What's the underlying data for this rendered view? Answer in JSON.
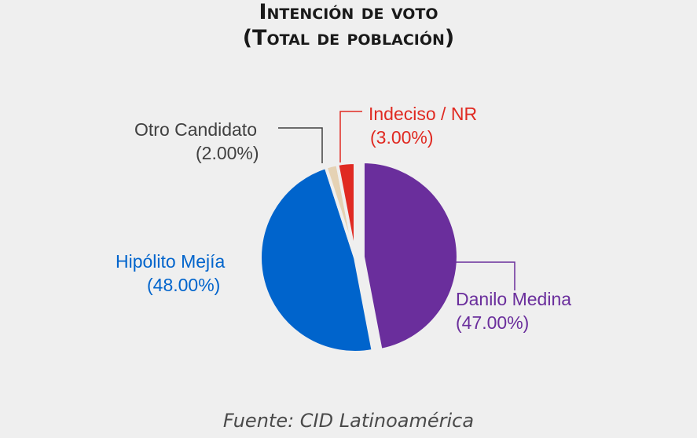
{
  "chart_data": {
    "type": "pie",
    "title_line1": "Intención de voto",
    "title_line2": "(Total de población)",
    "source": "Fuente: CID Latinoamérica",
    "slices": [
      {
        "name": "Danilo Medina",
        "value": 47.0,
        "value_label": "(47.00%)",
        "color": "#6a2e9c",
        "exploded": true
      },
      {
        "name": "Hipólito Mejía",
        "value": 48.0,
        "value_label": "(48.00%)",
        "color": "#0064cc",
        "exploded": false
      },
      {
        "name": "Otro Candidato",
        "value": 2.0,
        "value_label": "(2.00%)",
        "color": "#e5d2b4",
        "label_color": "#404040",
        "exploded": false
      },
      {
        "name": "Indeciso / NR",
        "value": 3.0,
        "value_label": "(3.00%)",
        "color": "#e02a22",
        "exploded": false
      }
    ],
    "legend": "none"
  }
}
